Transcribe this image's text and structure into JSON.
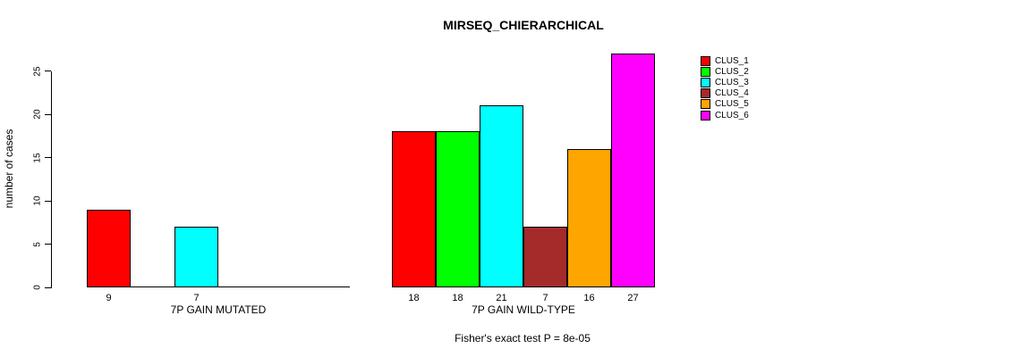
{
  "chart_data": {
    "type": "bar",
    "title": "MIRSEQ_CHIERARCHICAL",
    "ylabel": "number of cases",
    "xlabel": "",
    "ylim": [
      0,
      27
    ],
    "yticks": [
      0,
      5,
      10,
      15,
      20,
      25
    ],
    "grid": false,
    "legend_position": "right",
    "series_names": [
      "CLUS_1",
      "CLUS_2",
      "CLUS_3",
      "CLUS_4",
      "CLUS_5",
      "CLUS_6"
    ],
    "colors": [
      "#FF0000",
      "#00FF00",
      "#00FFFF",
      "#A52A2A",
      "#FFA500",
      "#FF00FF"
    ],
    "groups": [
      {
        "label": "7P GAIN MUTATED",
        "values": [
          9,
          0,
          7,
          0,
          0,
          0
        ],
        "bar_value_labels": [
          "9",
          "",
          "7",
          "",
          "",
          ""
        ]
      },
      {
        "label": "7P GAIN WILD-TYPE",
        "values": [
          18,
          18,
          21,
          7,
          16,
          27
        ],
        "bar_value_labels": [
          "18",
          "18",
          "21",
          "7",
          "16",
          "27"
        ]
      }
    ],
    "annotation": "Fisher's exact test P = 8e-05"
  }
}
